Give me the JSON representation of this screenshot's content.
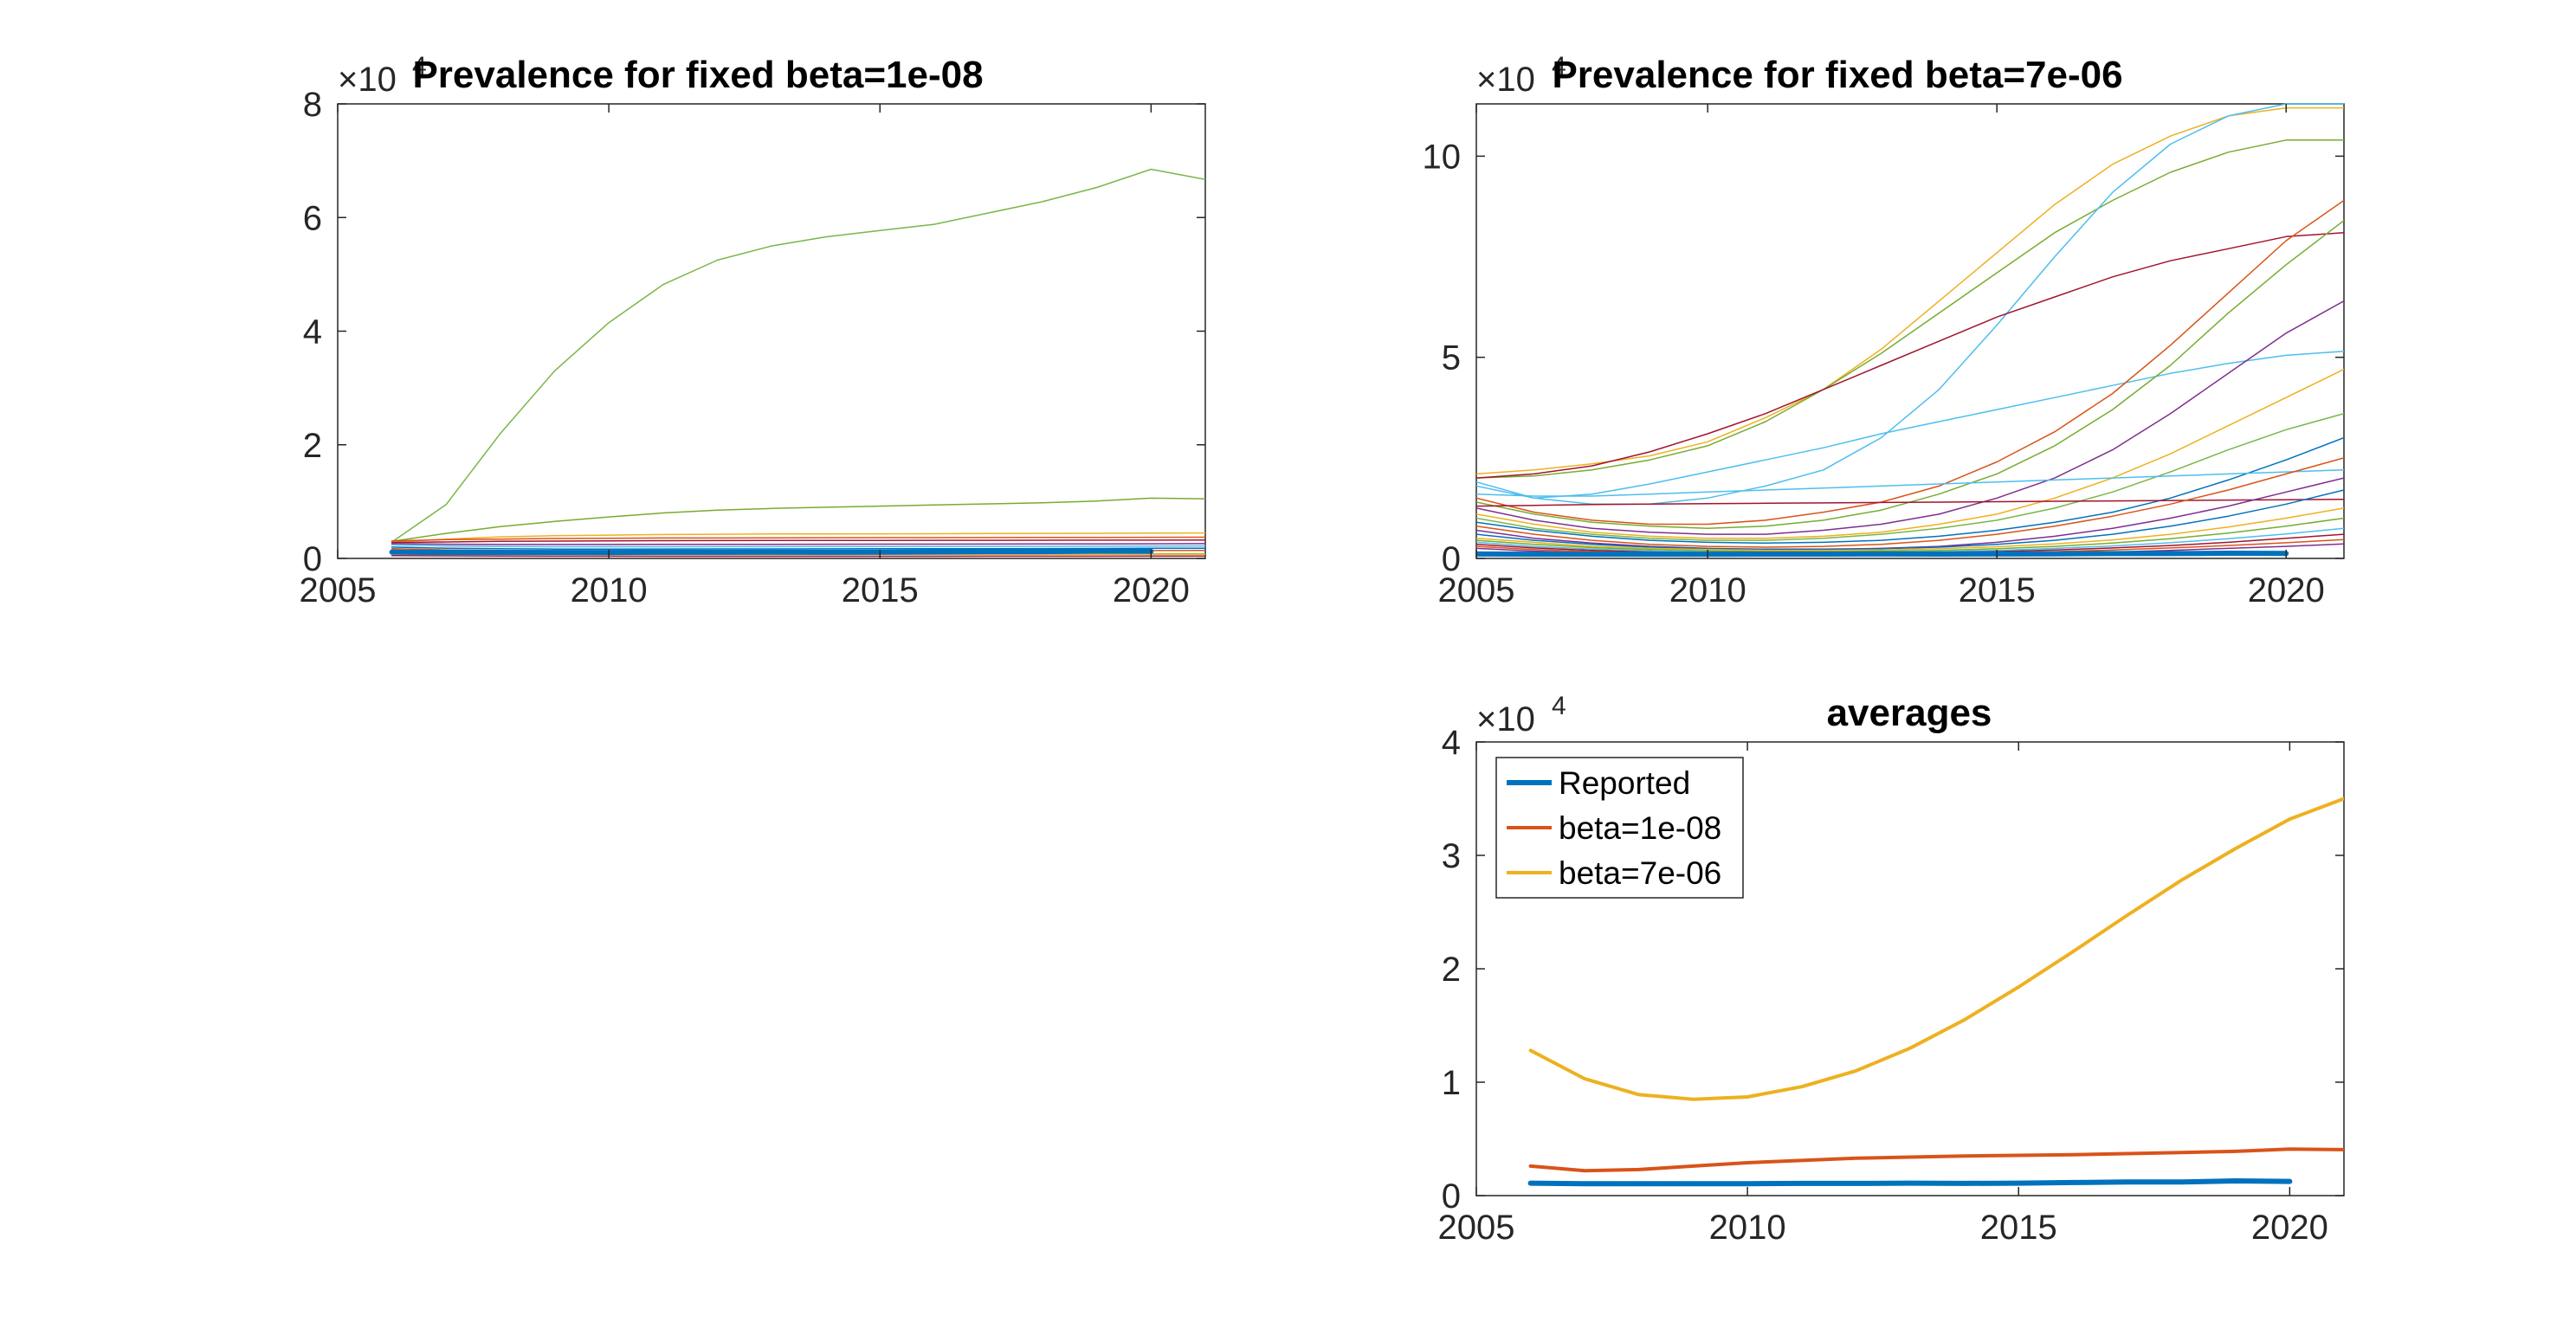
{
  "chart_data": [
    {
      "id": "p1",
      "type": "line",
      "title": "Prevalence for fixed beta=1e-08",
      "multiplier_base": "×10",
      "multiplier_exp": "4",
      "xlim": [
        2005,
        2021
      ],
      "ylim": [
        0,
        80000
      ],
      "xticks": [
        2005,
        2010,
        2015,
        2020
      ],
      "yticks": [
        0,
        20000,
        40000,
        60000,
        80000
      ],
      "ytick_labels": [
        "0",
        "2",
        "4",
        "6",
        "8"
      ],
      "x": [
        2006,
        2007,
        2008,
        2009,
        2010,
        2011,
        2012,
        2013,
        2014,
        2015,
        2016,
        2017,
        2018,
        2019,
        2020,
        2021
      ],
      "series": [
        {
          "color": "#7AB648",
          "width": 1.5,
          "values": [
            2900,
            9500,
            22000,
            33000,
            41500,
            48200,
            52500,
            55000,
            56600,
            57700,
            58800,
            60800,
            62800,
            65300,
            68500,
            66700
          ]
        },
        {
          "color": "#77AC30",
          "width": 1.5,
          "values": [
            3000,
            4400,
            5600,
            6500,
            7300,
            8000,
            8500,
            8800,
            9000,
            9200,
            9400,
            9600,
            9800,
            10100,
            10600,
            10500
          ]
        },
        {
          "color": "#EDB120",
          "width": 1.5,
          "values": [
            2900,
            3400,
            3800,
            4000,
            4100,
            4200,
            4250,
            4300,
            4300,
            4320,
            4350,
            4380,
            4400,
            4420,
            4450,
            4480
          ]
        },
        {
          "color": "#D95319",
          "width": 1.5,
          "values": [
            3100,
            3300,
            3400,
            3500,
            3550,
            3600,
            3600,
            3620,
            3640,
            3650,
            3660,
            3680,
            3700,
            3700,
            3720,
            3740
          ]
        },
        {
          "color": "#A2142F",
          "width": 1.5,
          "values": [
            2800,
            2900,
            3000,
            3050,
            3100,
            3120,
            3140,
            3150,
            3160,
            3170,
            3180,
            3190,
            3200,
            3210,
            3220,
            3230
          ]
        },
        {
          "color": "#7E2F8E",
          "width": 1.5,
          "values": [
            2600,
            2500,
            2450,
            2450,
            2460,
            2470,
            2480,
            2490,
            2500,
            2510,
            2520,
            2530,
            2540,
            2560,
            2580,
            2600
          ]
        },
        {
          "color": "#4DBEEE",
          "width": 1.5,
          "values": [
            2400,
            2200,
            2100,
            2050,
            2050,
            2060,
            2070,
            2080,
            2090,
            2100,
            2110,
            2120,
            2130,
            2150,
            2170,
            2200
          ]
        },
        {
          "color": "#0072BD",
          "width": 1.5,
          "values": [
            2000,
            1800,
            1700,
            1650,
            1650,
            1660,
            1670,
            1680,
            1690,
            1700,
            1710,
            1720,
            1740,
            1760,
            1780,
            1800
          ]
        },
        {
          "color": "#D95319",
          "width": 1.5,
          "values": [
            1700,
            1500,
            1400,
            1350,
            1340,
            1330,
            1330,
            1330,
            1330,
            1340,
            1350,
            1360,
            1370,
            1380,
            1390,
            1400
          ]
        },
        {
          "color": "#7AB648",
          "width": 1.5,
          "values": [
            1500,
            1200,
            1000,
            900,
            850,
            820,
            800,
            790,
            780,
            780,
            790,
            800,
            810,
            820,
            830,
            840
          ]
        },
        {
          "color": "#EDB120",
          "width": 1.5,
          "values": [
            900,
            800,
            750,
            720,
            700,
            690,
            690,
            690,
            690,
            700,
            700,
            710,
            720,
            730,
            740,
            750
          ]
        },
        {
          "color": "#A2142F",
          "width": 1.5,
          "values": [
            500,
            450,
            420,
            400,
            390,
            385,
            380,
            380,
            380,
            380,
            385,
            390,
            395,
            400,
            405,
            410
          ]
        },
        {
          "color": "#0072BD",
          "width": 6,
          "values": [
            1100,
            1050,
            1050,
            1050,
            1050,
            1080,
            1080,
            1100,
            1080,
            1100,
            1150,
            1200,
            1200,
            1300,
            1250,
            null
          ]
        }
      ]
    },
    {
      "id": "p2",
      "type": "line",
      "title": "Prevalence for fixed beta=7e-06",
      "multiplier_base": "×10",
      "multiplier_exp": "4",
      "xlim": [
        2006,
        2021
      ],
      "ylim": [
        0,
        113000
      ],
      "xticks": [
        2005,
        2010,
        2015,
        2020
      ],
      "yticks": [
        0,
        50000,
        100000
      ],
      "ytick_labels": [
        "0",
        "5",
        "10"
      ],
      "x": [
        2006,
        2007,
        2008,
        2009,
        2010,
        2011,
        2012,
        2013,
        2014,
        2015,
        2016,
        2017,
        2018,
        2019,
        2020,
        2021
      ],
      "series": [
        {
          "color": "#EDB120",
          "width": 1.5,
          "values": [
            21000,
            22000,
            23500,
            25500,
            29000,
            35000,
            42000,
            52000,
            64000,
            76000,
            88000,
            98000,
            105000,
            110000,
            112000,
            112000
          ]
        },
        {
          "color": "#77AC30",
          "width": 1.5,
          "values": [
            20000,
            20500,
            22000,
            24500,
            28000,
            34000,
            42000,
            51000,
            61000,
            71000,
            81000,
            89000,
            96000,
            101000,
            104000,
            104000
          ]
        },
        {
          "color": "#4DBEEE",
          "width": 1.5,
          "values": [
            19000,
            15000,
            13500,
            13500,
            15000,
            18000,
            22000,
            30000,
            42000,
            58000,
            75000,
            91000,
            103000,
            110000,
            113000,
            113000
          ]
        },
        {
          "color": "#A2142F",
          "width": 1.5,
          "values": [
            20000,
            21000,
            23000,
            26500,
            31000,
            36000,
            42000,
            48000,
            54000,
            60000,
            65000,
            70000,
            74000,
            77000,
            80000,
            81000
          ]
        },
        {
          "color": "#4DBEEE",
          "width": 1.5,
          "values": [
            18000,
            15000,
            16000,
            18500,
            21500,
            24500,
            27500,
            31000,
            34000,
            37000,
            40000,
            43000,
            46000,
            48500,
            50500,
            51500
          ]
        },
        {
          "color": "#D95319",
          "width": 1.5,
          "values": [
            15000,
            11500,
            9500,
            8500,
            8500,
            9500,
            11500,
            14000,
            18000,
            24000,
            31500,
            41000,
            53000,
            66000,
            79000,
            89000
          ]
        },
        {
          "color": "#77AC30",
          "width": 1.5,
          "values": [
            14000,
            11000,
            9000,
            8000,
            7500,
            8000,
            9500,
            12000,
            16000,
            21000,
            28000,
            37000,
            48000,
            61000,
            73000,
            84000
          ]
        },
        {
          "color": "#7E2F8E",
          "width": 1.5,
          "values": [
            12500,
            9500,
            7500,
            6500,
            6000,
            6000,
            7000,
            8500,
            11000,
            15000,
            20000,
            27000,
            36000,
            46000,
            56000,
            64000
          ]
        },
        {
          "color": "#EDB120",
          "width": 1.5,
          "values": [
            11000,
            8500,
            6500,
            5500,
            5000,
            5000,
            5500,
            6500,
            8500,
            11000,
            15000,
            20000,
            26000,
            33000,
            40000,
            47000
          ]
        },
        {
          "color": "#7AB648",
          "width": 1.5,
          "values": [
            10000,
            7500,
            6000,
            5000,
            4500,
            4500,
            5000,
            6000,
            7500,
            9500,
            12500,
            16500,
            21500,
            27000,
            32000,
            36000
          ]
        },
        {
          "color": "#0072BD",
          "width": 1.5,
          "values": [
            9000,
            7000,
            5500,
            4500,
            4000,
            3800,
            4000,
            4500,
            5500,
            7000,
            9000,
            11500,
            15000,
            19500,
            24500,
            30000
          ]
        },
        {
          "color": "#A2142F",
          "width": 1.5,
          "values": [
            13000,
            13200,
            13400,
            13500,
            13600,
            13700,
            13800,
            13900,
            14000,
            14100,
            14200,
            14300,
            14400,
            14500,
            14600,
            14700
          ]
        },
        {
          "color": "#4DBEEE",
          "width": 1.5,
          "values": [
            16000,
            15500,
            15500,
            16000,
            16500,
            17000,
            17500,
            18000,
            18500,
            19000,
            19500,
            20000,
            20500,
            21000,
            21500,
            22000
          ]
        },
        {
          "color": "#D95319",
          "width": 1.5,
          "values": [
            8000,
            6000,
            4500,
            3500,
            3000,
            2800,
            3000,
            3500,
            4500,
            6000,
            8000,
            10500,
            13500,
            17000,
            21000,
            25000
          ]
        },
        {
          "color": "#7E2F8E",
          "width": 1.5,
          "values": [
            7000,
            5000,
            3800,
            3000,
            2500,
            2300,
            2300,
            2500,
            3000,
            4000,
            5500,
            7500,
            10000,
            13000,
            16500,
            20000
          ]
        },
        {
          "color": "#0072BD",
          "width": 1.5,
          "values": [
            6000,
            4500,
            3500,
            2800,
            2400,
            2200,
            2200,
            2400,
            2800,
            3500,
            4500,
            6000,
            8000,
            10500,
            13500,
            17000
          ]
        },
        {
          "color": "#EDB120",
          "width": 1.5,
          "values": [
            5000,
            4000,
            3000,
            2500,
            2200,
            2000,
            2000,
            2100,
            2400,
            2900,
            3600,
            4600,
            6000,
            7800,
            10000,
            12500
          ]
        },
        {
          "color": "#77AC30",
          "width": 1.5,
          "values": [
            4500,
            3500,
            2700,
            2200,
            1900,
            1700,
            1700,
            1800,
            2000,
            2400,
            3000,
            3800,
            4900,
            6300,
            8000,
            10000
          ]
        },
        {
          "color": "#4DBEEE",
          "width": 1.5,
          "values": [
            4000,
            3000,
            2300,
            1900,
            1600,
            1500,
            1500,
            1550,
            1700,
            2000,
            2500,
            3100,
            3900,
            4900,
            6100,
            7500
          ]
        },
        {
          "color": "#A2142F",
          "width": 1.5,
          "values": [
            3500,
            2600,
            2000,
            1600,
            1400,
            1300,
            1300,
            1350,
            1500,
            1700,
            2100,
            2600,
            3200,
            4000,
            5000,
            6000
          ]
        },
        {
          "color": "#D95319",
          "width": 1.5,
          "values": [
            3000,
            2200,
            1700,
            1400,
            1200,
            1100,
            1100,
            1150,
            1250,
            1400,
            1700,
            2100,
            2600,
            3200,
            3900,
            4700
          ]
        },
        {
          "color": "#7E2F8E",
          "width": 1.5,
          "values": [
            2500,
            1800,
            1400,
            1100,
            950,
            900,
            900,
            920,
            1000,
            1100,
            1300,
            1600,
            2000,
            2500,
            3000,
            3600
          ]
        },
        {
          "color": "#0072BD",
          "width": 6,
          "values": [
            1100,
            1050,
            1050,
            1050,
            1050,
            1080,
            1080,
            1100,
            1080,
            1100,
            1150,
            1200,
            1200,
            1300,
            1250,
            null
          ]
        }
      ]
    },
    {
      "id": "p3",
      "type": "line",
      "title": "averages",
      "multiplier_base": "×10",
      "multiplier_exp": "4",
      "xlim": [
        2005,
        2021
      ],
      "ylim": [
        0,
        40000
      ],
      "xticks": [
        2005,
        2010,
        2015,
        2020
      ],
      "yticks": [
        0,
        10000,
        20000,
        30000,
        40000
      ],
      "ytick_labels": [
        "0",
        "1",
        "2",
        "3",
        "4"
      ],
      "legend_position": "top-left",
      "x": [
        2006,
        2007,
        2008,
        2009,
        2010,
        2011,
        2012,
        2013,
        2014,
        2015,
        2016,
        2017,
        2018,
        2019,
        2020,
        2021
      ],
      "series": [
        {
          "name": "Reported",
          "color": "#0072BD",
          "width": 6,
          "values": [
            1100,
            1050,
            1050,
            1050,
            1050,
            1080,
            1080,
            1100,
            1080,
            1100,
            1150,
            1200,
            1200,
            1300,
            1250,
            null
          ]
        },
        {
          "name": "beta=1e-08",
          "color": "#D95319",
          "width": 4,
          "values": [
            2600,
            2200,
            2300,
            2600,
            2900,
            3100,
            3300,
            3400,
            3500,
            3550,
            3600,
            3700,
            3800,
            3900,
            4100,
            4050
          ]
        },
        {
          "name": "beta=7e-06",
          "color": "#EDB120",
          "width": 4,
          "values": [
            12800,
            10300,
            8900,
            8500,
            8700,
            9600,
            11000,
            13000,
            15500,
            18400,
            21500,
            24700,
            27800,
            30600,
            33200,
            35000
          ]
        }
      ]
    }
  ]
}
